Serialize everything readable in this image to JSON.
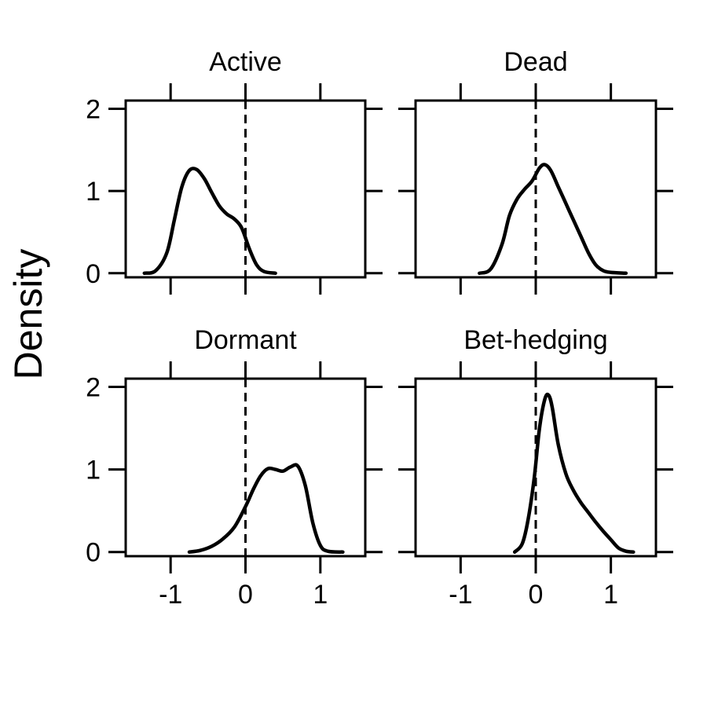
{
  "chart_data": {
    "type": "line",
    "ylabel": "Density",
    "xlabel": "",
    "xlim": [
      -1.6,
      1.6
    ],
    "ylim": [
      -0.05,
      2.1
    ],
    "xticks": [
      -1,
      0,
      1
    ],
    "yticks": [
      0,
      1,
      2
    ],
    "xtick_labels": [
      "-1",
      "0",
      "1"
    ],
    "ytick_labels": [
      "0",
      "1",
      "2"
    ],
    "reference_line_x": 0,
    "grid": false,
    "panels": [
      {
        "name": "Active",
        "x": [
          -1.35,
          -1.2,
          -1.05,
          -0.95,
          -0.85,
          -0.75,
          -0.65,
          -0.55,
          -0.45,
          -0.35,
          -0.25,
          -0.15,
          -0.05,
          0.05,
          0.15,
          0.25,
          0.4
        ],
        "y": [
          0.0,
          0.03,
          0.25,
          0.65,
          1.05,
          1.25,
          1.26,
          1.15,
          0.98,
          0.82,
          0.72,
          0.66,
          0.55,
          0.3,
          0.1,
          0.02,
          0.0
        ]
      },
      {
        "name": "Dead",
        "x": [
          -0.75,
          -0.6,
          -0.45,
          -0.35,
          -0.25,
          -0.15,
          -0.05,
          0.05,
          0.12,
          0.2,
          0.3,
          0.4,
          0.5,
          0.6,
          0.7,
          0.8,
          0.9,
          1.0,
          1.2
        ],
        "y": [
          0.0,
          0.05,
          0.35,
          0.7,
          0.9,
          1.02,
          1.12,
          1.28,
          1.32,
          1.25,
          1.05,
          0.85,
          0.65,
          0.45,
          0.25,
          0.1,
          0.03,
          0.01,
          0.0
        ]
      },
      {
        "name": "Dormant",
        "x": [
          -0.75,
          -0.6,
          -0.45,
          -0.3,
          -0.15,
          0.0,
          0.1,
          0.2,
          0.3,
          0.4,
          0.5,
          0.6,
          0.7,
          0.8,
          0.9,
          1.0,
          1.1,
          1.3
        ],
        "y": [
          0.0,
          0.02,
          0.07,
          0.16,
          0.3,
          0.55,
          0.75,
          0.92,
          1.01,
          1.0,
          0.98,
          1.03,
          1.04,
          0.8,
          0.35,
          0.08,
          0.01,
          0.0
        ]
      },
      {
        "name": "Bet-hedging",
        "x": [
          -0.28,
          -0.18,
          -0.1,
          -0.02,
          0.05,
          0.12,
          0.17,
          0.22,
          0.3,
          0.4,
          0.5,
          0.6,
          0.7,
          0.8,
          0.9,
          1.0,
          1.1,
          1.2,
          1.3
        ],
        "y": [
          0.0,
          0.1,
          0.4,
          0.9,
          1.5,
          1.85,
          1.9,
          1.75,
          1.3,
          0.95,
          0.75,
          0.6,
          0.48,
          0.36,
          0.25,
          0.15,
          0.05,
          0.01,
          0.0
        ]
      }
    ]
  }
}
